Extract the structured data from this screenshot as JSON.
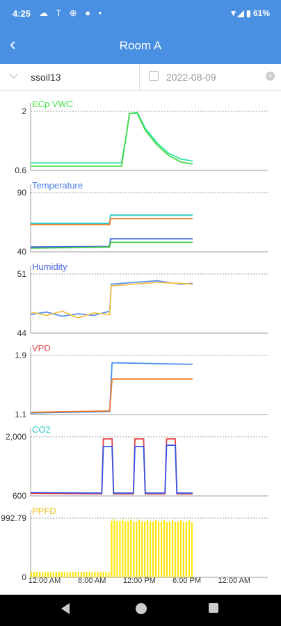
{
  "status_bar": {
    "time": "4:25",
    "icons_left": "☁ T ⊕ ● •",
    "icons_right": "▼◢ ▮ 61%"
  },
  "header": {
    "title": "Room A",
    "back_icon": "back-arrow-icon"
  },
  "filters": {
    "sensor": "ssoil13",
    "date": "2022-08-09",
    "clear_icon": "×"
  },
  "x_axis": {
    "ticks": [
      "12:00 AM",
      "6:00 AM",
      "12:00 PM",
      "6:00 PM",
      "12:00 AM"
    ]
  },
  "chart_data": [
    {
      "type": "line",
      "title": "ECp VWC",
      "title_color": "#4be34b",
      "ylim_labels": [
        "2",
        "0.6"
      ],
      "ylim": [
        0.6,
        2
      ],
      "series": [
        {
          "color": "#2ee6a0",
          "values": [
            [
              0,
              0.78
            ],
            [
              11.5,
              0.78
            ],
            [
              12,
              1.3
            ],
            [
              12.5,
              1.95
            ],
            [
              13.5,
              1.97
            ],
            [
              14.5,
              1.6
            ],
            [
              16,
              1.25
            ],
            [
              17.5,
              1.0
            ],
            [
              19,
              0.87
            ],
            [
              20.5,
              0.82
            ]
          ]
        },
        {
          "color": "#44d944",
          "values": [
            [
              0,
              0.7
            ],
            [
              11.5,
              0.7
            ],
            [
              12,
              1.3
            ],
            [
              12.5,
              1.95
            ],
            [
              13.5,
              1.95
            ],
            [
              14.5,
              1.55
            ],
            [
              16,
              1.2
            ],
            [
              17.5,
              0.95
            ],
            [
              19,
              0.8
            ],
            [
              20.5,
              0.75
            ]
          ]
        }
      ]
    },
    {
      "type": "line",
      "title": "Temperature",
      "title_color": "#4a7de0",
      "ylim_labels": [
        "90",
        "40"
      ],
      "ylim": [
        40,
        90
      ],
      "series": [
        {
          "color": "#26c9c9",
          "values": [
            [
              0,
              64
            ],
            [
              10,
              64
            ],
            [
              10.1,
              71
            ],
            [
              20.5,
              71
            ]
          ]
        },
        {
          "color": "#f07d28",
          "values": [
            [
              0,
              63
            ],
            [
              10,
              63
            ],
            [
              10.1,
              68
            ],
            [
              20.5,
              68
            ]
          ]
        },
        {
          "color": "#3a5fe0",
          "values": [
            [
              0,
              44
            ],
            [
              10,
              44.5
            ],
            [
              10.1,
              51
            ],
            [
              20.5,
              51
            ]
          ]
        },
        {
          "color": "#44c744",
          "values": [
            [
              0,
              43
            ],
            [
              10,
              44
            ],
            [
              10.1,
              48
            ],
            [
              20.5,
              48
            ]
          ]
        }
      ]
    },
    {
      "type": "line",
      "title": "Humidity",
      "title_color": "#4a5fe0",
      "ylim_labels": [
        "51",
        "44"
      ],
      "ylim": [
        44,
        51
      ],
      "series": [
        {
          "color": "#5a8ff0",
          "values": [
            [
              0,
              46.2
            ],
            [
              2,
              46.5
            ],
            [
              4,
              46
            ],
            [
              6,
              46.3
            ],
            [
              8,
              46.1
            ],
            [
              10,
              46.6
            ],
            [
              10.2,
              49.8
            ],
            [
              13,
              50
            ],
            [
              16,
              50.2
            ],
            [
              19,
              49.8
            ],
            [
              20.5,
              49.9
            ]
          ]
        },
        {
          "color": "#f5c242",
          "values": [
            [
              0,
              46.5
            ],
            [
              2,
              46.1
            ],
            [
              4,
              46.6
            ],
            [
              6,
              45.8
            ],
            [
              8,
              46.4
            ],
            [
              10,
              46.2
            ],
            [
              10.2,
              49.6
            ],
            [
              13,
              49.8
            ],
            [
              16,
              50
            ],
            [
              19,
              49.9
            ],
            [
              20.5,
              49.8
            ]
          ]
        }
      ]
    },
    {
      "type": "line",
      "title": "VPD",
      "title_color": "#e05050",
      "ylim_labels": [
        "1.9",
        "1.1"
      ],
      "ylim": [
        1.1,
        1.9
      ],
      "series": [
        {
          "color": "#4a8ff0",
          "values": [
            [
              0,
              1.12
            ],
            [
              10,
              1.14
            ],
            [
              10.3,
              1.8
            ],
            [
              20.5,
              1.78
            ]
          ]
        },
        {
          "color": "#f07d28",
          "values": [
            [
              0,
              1.13
            ],
            [
              10,
              1.15
            ],
            [
              10.3,
              1.58
            ],
            [
              20.5,
              1.58
            ]
          ]
        }
      ]
    },
    {
      "type": "line",
      "title": "CO2",
      "title_color": "#2ec4c4",
      "ylim_labels": [
        "2,000",
        "600"
      ],
      "ylim": [
        600,
        2000
      ],
      "series": [
        {
          "color": "#e84040",
          "values": [
            [
              0,
              660
            ],
            [
              9,
              650
            ],
            [
              9.2,
              1950
            ],
            [
              10.3,
              1950
            ],
            [
              10.5,
              650
            ],
            [
              13,
              650
            ],
            [
              13.2,
              1950
            ],
            [
              14.3,
              1950
            ],
            [
              14.5,
              650
            ],
            [
              17,
              650
            ],
            [
              17.2,
              1950
            ],
            [
              18.3,
              1950
            ],
            [
              18.5,
              650
            ],
            [
              20.5,
              650
            ]
          ]
        },
        {
          "color": "#3355e8",
          "values": [
            [
              0,
              680
            ],
            [
              9,
              670
            ],
            [
              9.2,
              1770
            ],
            [
              10.3,
              1770
            ],
            [
              10.5,
              670
            ],
            [
              13,
              670
            ],
            [
              13.2,
              1770
            ],
            [
              14.3,
              1770
            ],
            [
              14.5,
              670
            ],
            [
              17,
              670
            ],
            [
              17.2,
              1800
            ],
            [
              18.3,
              1800
            ],
            [
              18.5,
              670
            ],
            [
              20.5,
              670
            ]
          ]
        }
      ]
    },
    {
      "type": "bar",
      "title": "PPFD",
      "title_color": "#f0c020",
      "ylim_labels": [
        "992.79",
        "0"
      ],
      "ylim": [
        0,
        992.79
      ],
      "series": [
        {
          "color": "#ffe60a",
          "values": [
            [
              0,
              90
            ],
            [
              10,
              90
            ],
            [
              10.1,
              980
            ],
            [
              20.5,
              960
            ]
          ]
        }
      ]
    }
  ]
}
